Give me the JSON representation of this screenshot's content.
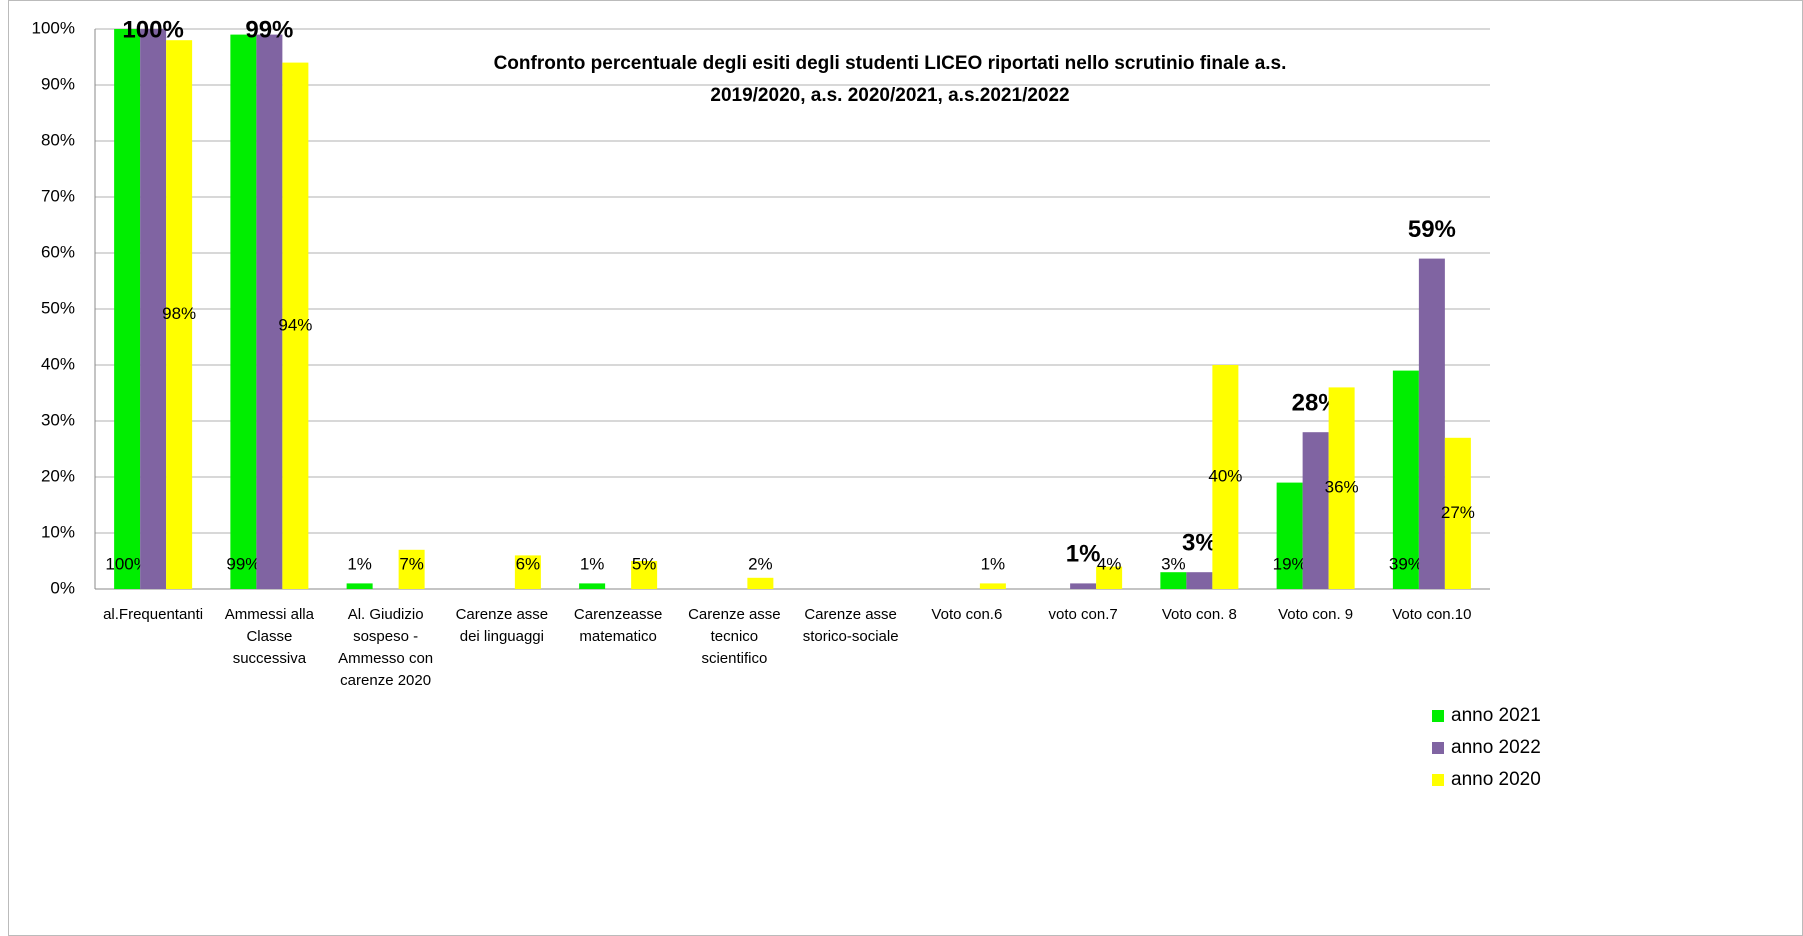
{
  "chart_data": {
    "type": "bar",
    "title": "Confronto  percentuale degli esiti  degli studenti LICEO  riportati nello scrutinio finale  a.s.\n2019/2020, a.s. 2020/2021, a.s.2021/2022",
    "categories": [
      "al.Frequentanti",
      "Ammessi alla\nClasse\nsuccessiva",
      "Al. Giudizio\nsospeso -\nAmmesso con\ncarenze 2020",
      "Carenze asse\ndei linguaggi",
      "Carenzeasse\nmatematico",
      "Carenze asse\ntecnico\nscientifico",
      "Carenze asse\nstorico-sociale",
      "Voto con.6",
      "voto con.7",
      "Voto con. 8",
      "Voto con. 9",
      "Voto con.10"
    ],
    "series": [
      {
        "name": "anno 2021",
        "color": "#00ee00",
        "values": [
          100,
          99,
          1,
          0,
          1,
          0,
          0,
          0,
          0,
          3,
          19,
          39
        ],
        "value_labels": [
          "100%",
          "99%",
          "1%",
          null,
          "1%",
          null,
          null,
          null,
          null,
          "3%",
          "19%",
          "39%"
        ]
      },
      {
        "name": "anno 2022",
        "color": "#8064a2",
        "values": [
          100,
          99,
          0,
          0,
          0,
          0,
          0,
          0,
          1,
          3,
          28,
          59
        ],
        "value_labels": [
          "100%",
          "99%",
          null,
          null,
          null,
          null,
          null,
          null,
          "1%",
          "3%",
          "28%",
          "59%"
        ]
      },
      {
        "name": "anno 2020",
        "color": "#ffff00",
        "values": [
          98,
          94,
          7,
          6,
          5,
          2,
          0,
          1,
          4,
          40,
          36,
          27
        ],
        "value_labels": [
          "98%",
          "94%",
          "7%",
          "6%",
          "5%",
          "2%",
          null,
          "1%",
          "4%",
          "40%",
          "36%",
          "27%"
        ]
      }
    ],
    "ylim": [
      0,
      100
    ],
    "yticks": [
      {
        "value": 0,
        "label": "0%"
      },
      {
        "value": 10,
        "label": "10%"
      },
      {
        "value": 20,
        "label": "20%"
      },
      {
        "value": 30,
        "label": "30%"
      },
      {
        "value": 40,
        "label": "40%"
      },
      {
        "value": 50,
        "label": "50%"
      },
      {
        "value": 60,
        "label": "60%"
      },
      {
        "value": 70,
        "label": "70%"
      },
      {
        "value": 80,
        "label": "80%"
      },
      {
        "value": 90,
        "label": "90%"
      },
      {
        "value": 100,
        "label": "100%"
      }
    ],
    "grid": true,
    "legend": "bottom-right"
  }
}
